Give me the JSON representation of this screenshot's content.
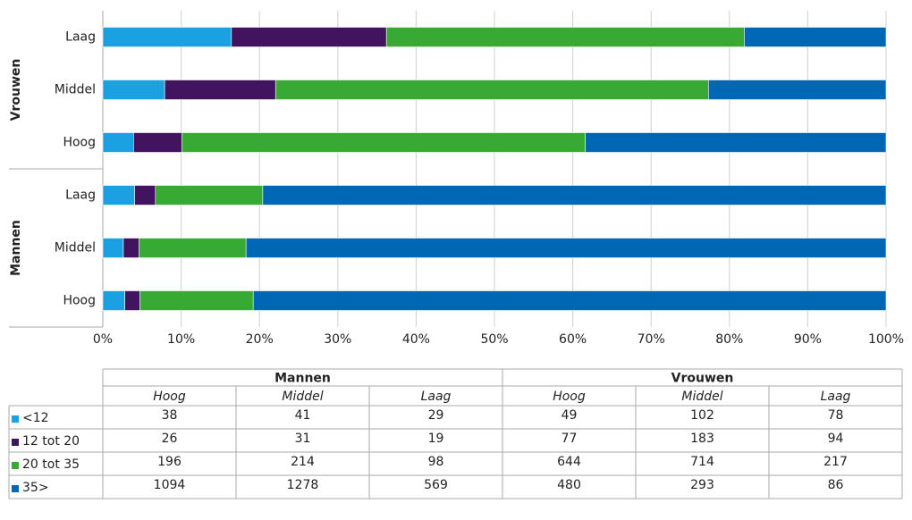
{
  "chart_data": {
    "type": "bar",
    "groups": [
      "Mannen",
      "Vrouwen"
    ],
    "levels": [
      "Hoog",
      "Middel",
      "Laag"
    ],
    "series": [
      {
        "name": "<12",
        "color": "#1ba1e2",
        "values": [
          38,
          41,
          29,
          49,
          102,
          78
        ]
      },
      {
        "name": "12 tot 20",
        "color": "#42145f",
        "values": [
          26,
          31,
          19,
          77,
          183,
          94
        ]
      },
      {
        "name": "20 tot 35",
        "color": "#39a935",
        "values": [
          196,
          214,
          98,
          644,
          714,
          217
        ]
      },
      {
        "name": "35>",
        "color": "#0067b4",
        "values": [
          1094,
          1278,
          569,
          480,
          293,
          86
        ]
      }
    ],
    "xlim": [
      0,
      100
    ],
    "xticks": [
      {
        "value": 0,
        "label": "0%"
      },
      {
        "value": 10,
        "label": "10%"
      },
      {
        "value": 20,
        "label": "20%"
      },
      {
        "value": 30,
        "label": "30%"
      },
      {
        "value": 40,
        "label": "40%"
      },
      {
        "value": 50,
        "label": "50%"
      },
      {
        "value": 60,
        "label": "60%"
      },
      {
        "value": 70,
        "label": "70%"
      },
      {
        "value": 80,
        "label": "80%"
      },
      {
        "value": 90,
        "label": "90%"
      },
      {
        "value": 100,
        "label": "100%"
      }
    ],
    "grid": true
  }
}
